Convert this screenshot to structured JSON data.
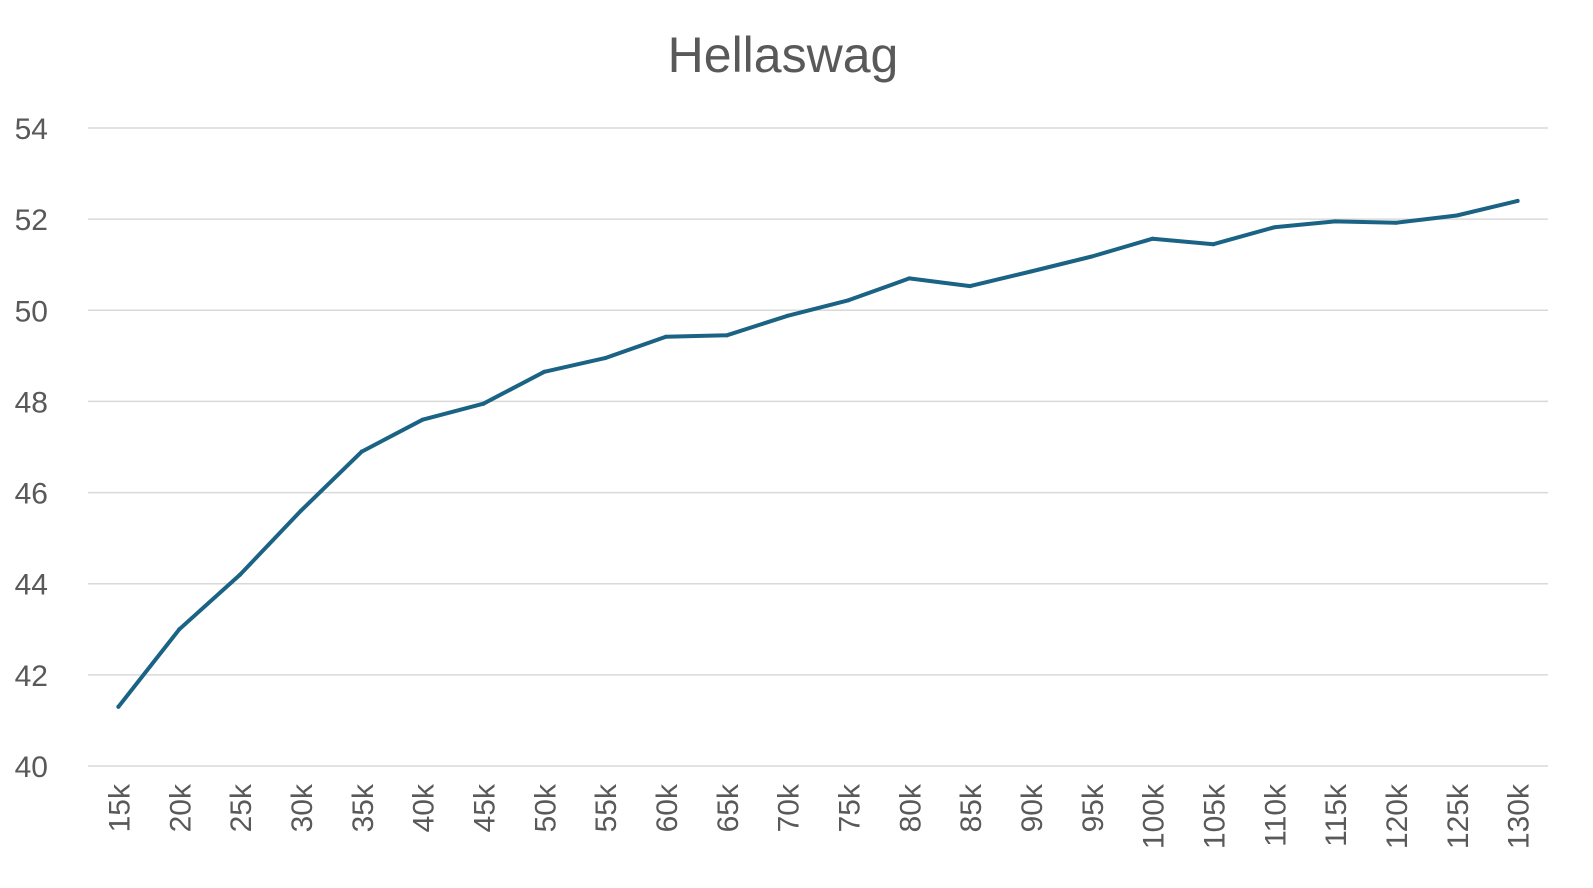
{
  "chart_data": {
    "type": "line",
    "title": "Hellaswag",
    "xlabel": "",
    "ylabel": "",
    "categories": [
      "15k",
      "20k",
      "25k",
      "30k",
      "35k",
      "40k",
      "45k",
      "50k",
      "55k",
      "60k",
      "65k",
      "70k",
      "75k",
      "80k",
      "85k",
      "90k",
      "95k",
      "100k",
      "105k",
      "110k",
      "115k",
      "120k",
      "125k",
      "130k"
    ],
    "series": [
      {
        "values": [
          41.3,
          43.0,
          44.2,
          45.6,
          46.9,
          47.6,
          47.95,
          48.65,
          48.95,
          49.42,
          49.45,
          49.88,
          50.22,
          50.7,
          50.53,
          50.85,
          51.18,
          51.57,
          51.45,
          51.82,
          51.95,
          51.92,
          52.08,
          52.4
        ],
        "color": "#1b6384"
      }
    ],
    "ylim": [
      40,
      54
    ],
    "yticks": [
      40,
      42,
      44,
      46,
      48,
      50,
      52,
      54
    ],
    "grid": true,
    "legend": "none"
  }
}
